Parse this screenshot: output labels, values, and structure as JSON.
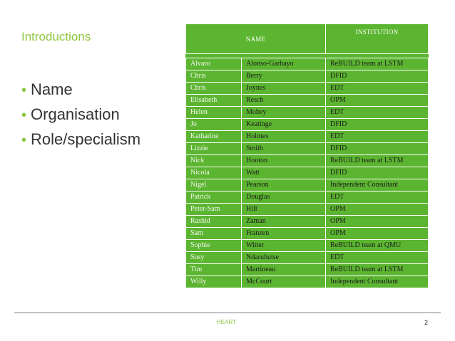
{
  "slide": {
    "title": "Introductions",
    "bullets": [
      "Name",
      "Organisation",
      "Role/specialism"
    ]
  },
  "table": {
    "headers": {
      "name": "NAME",
      "institution": "INSTITUTION"
    },
    "rows": [
      {
        "first": "Alvaro",
        "last": "Alonso-Garbayo",
        "institution": "ReBUILD team at LSTM"
      },
      {
        "first": "Chris",
        "last": "Berry",
        "institution": "DFID"
      },
      {
        "first": "Chris",
        "last": "Joynes",
        "institution": "EDT"
      },
      {
        "first": "Elisabeth",
        "last": "Resch",
        "institution": "OPM"
      },
      {
        "first": "Helen",
        "last": "Mobey",
        "institution": "EDT"
      },
      {
        "first": "Jo",
        "last": "Keatinge",
        "institution": "DFID"
      },
      {
        "first": "Katharine",
        "last": "Holmes",
        "institution": "EDT"
      },
      {
        "first": "Lizzie",
        "last": "Smith",
        "institution": "DFID"
      },
      {
        "first": "Nick",
        "last": "Hooton",
        "institution": "ReBUILD team at LSTM"
      },
      {
        "first": "Nicola",
        "last": "Watt",
        "institution": "DFID"
      },
      {
        "first": "Nigel",
        "last": "Pearson",
        "institution": "Independent Consultant"
      },
      {
        "first": "Patrick",
        "last": "Douglas",
        "institution": "EDT"
      },
      {
        "first": "Peter-Sam",
        "last": "Hill",
        "institution": "OPM"
      },
      {
        "first": "Rashid",
        "last": "Zaman",
        "institution": "OPM"
      },
      {
        "first": "Sam",
        "last": "Franzen",
        "institution": "OPM"
      },
      {
        "first": "Sophie",
        "last": "Witter",
        "institution": "ReBUILD team at QMU"
      },
      {
        "first": "Susy",
        "last": "Ndaruhutse",
        "institution": "EDT"
      },
      {
        "first": "Tim",
        "last": "Martineau",
        "institution": "ReBUILD team at LSTM"
      },
      {
        "first": "Willy",
        "last": "McCourt",
        "institution": "Independent Consultant"
      }
    ]
  },
  "footer": {
    "brand": "HEART",
    "page_number": "2"
  },
  "colors": {
    "accent": "#8dc63f",
    "table_fill": "#5cb531"
  }
}
